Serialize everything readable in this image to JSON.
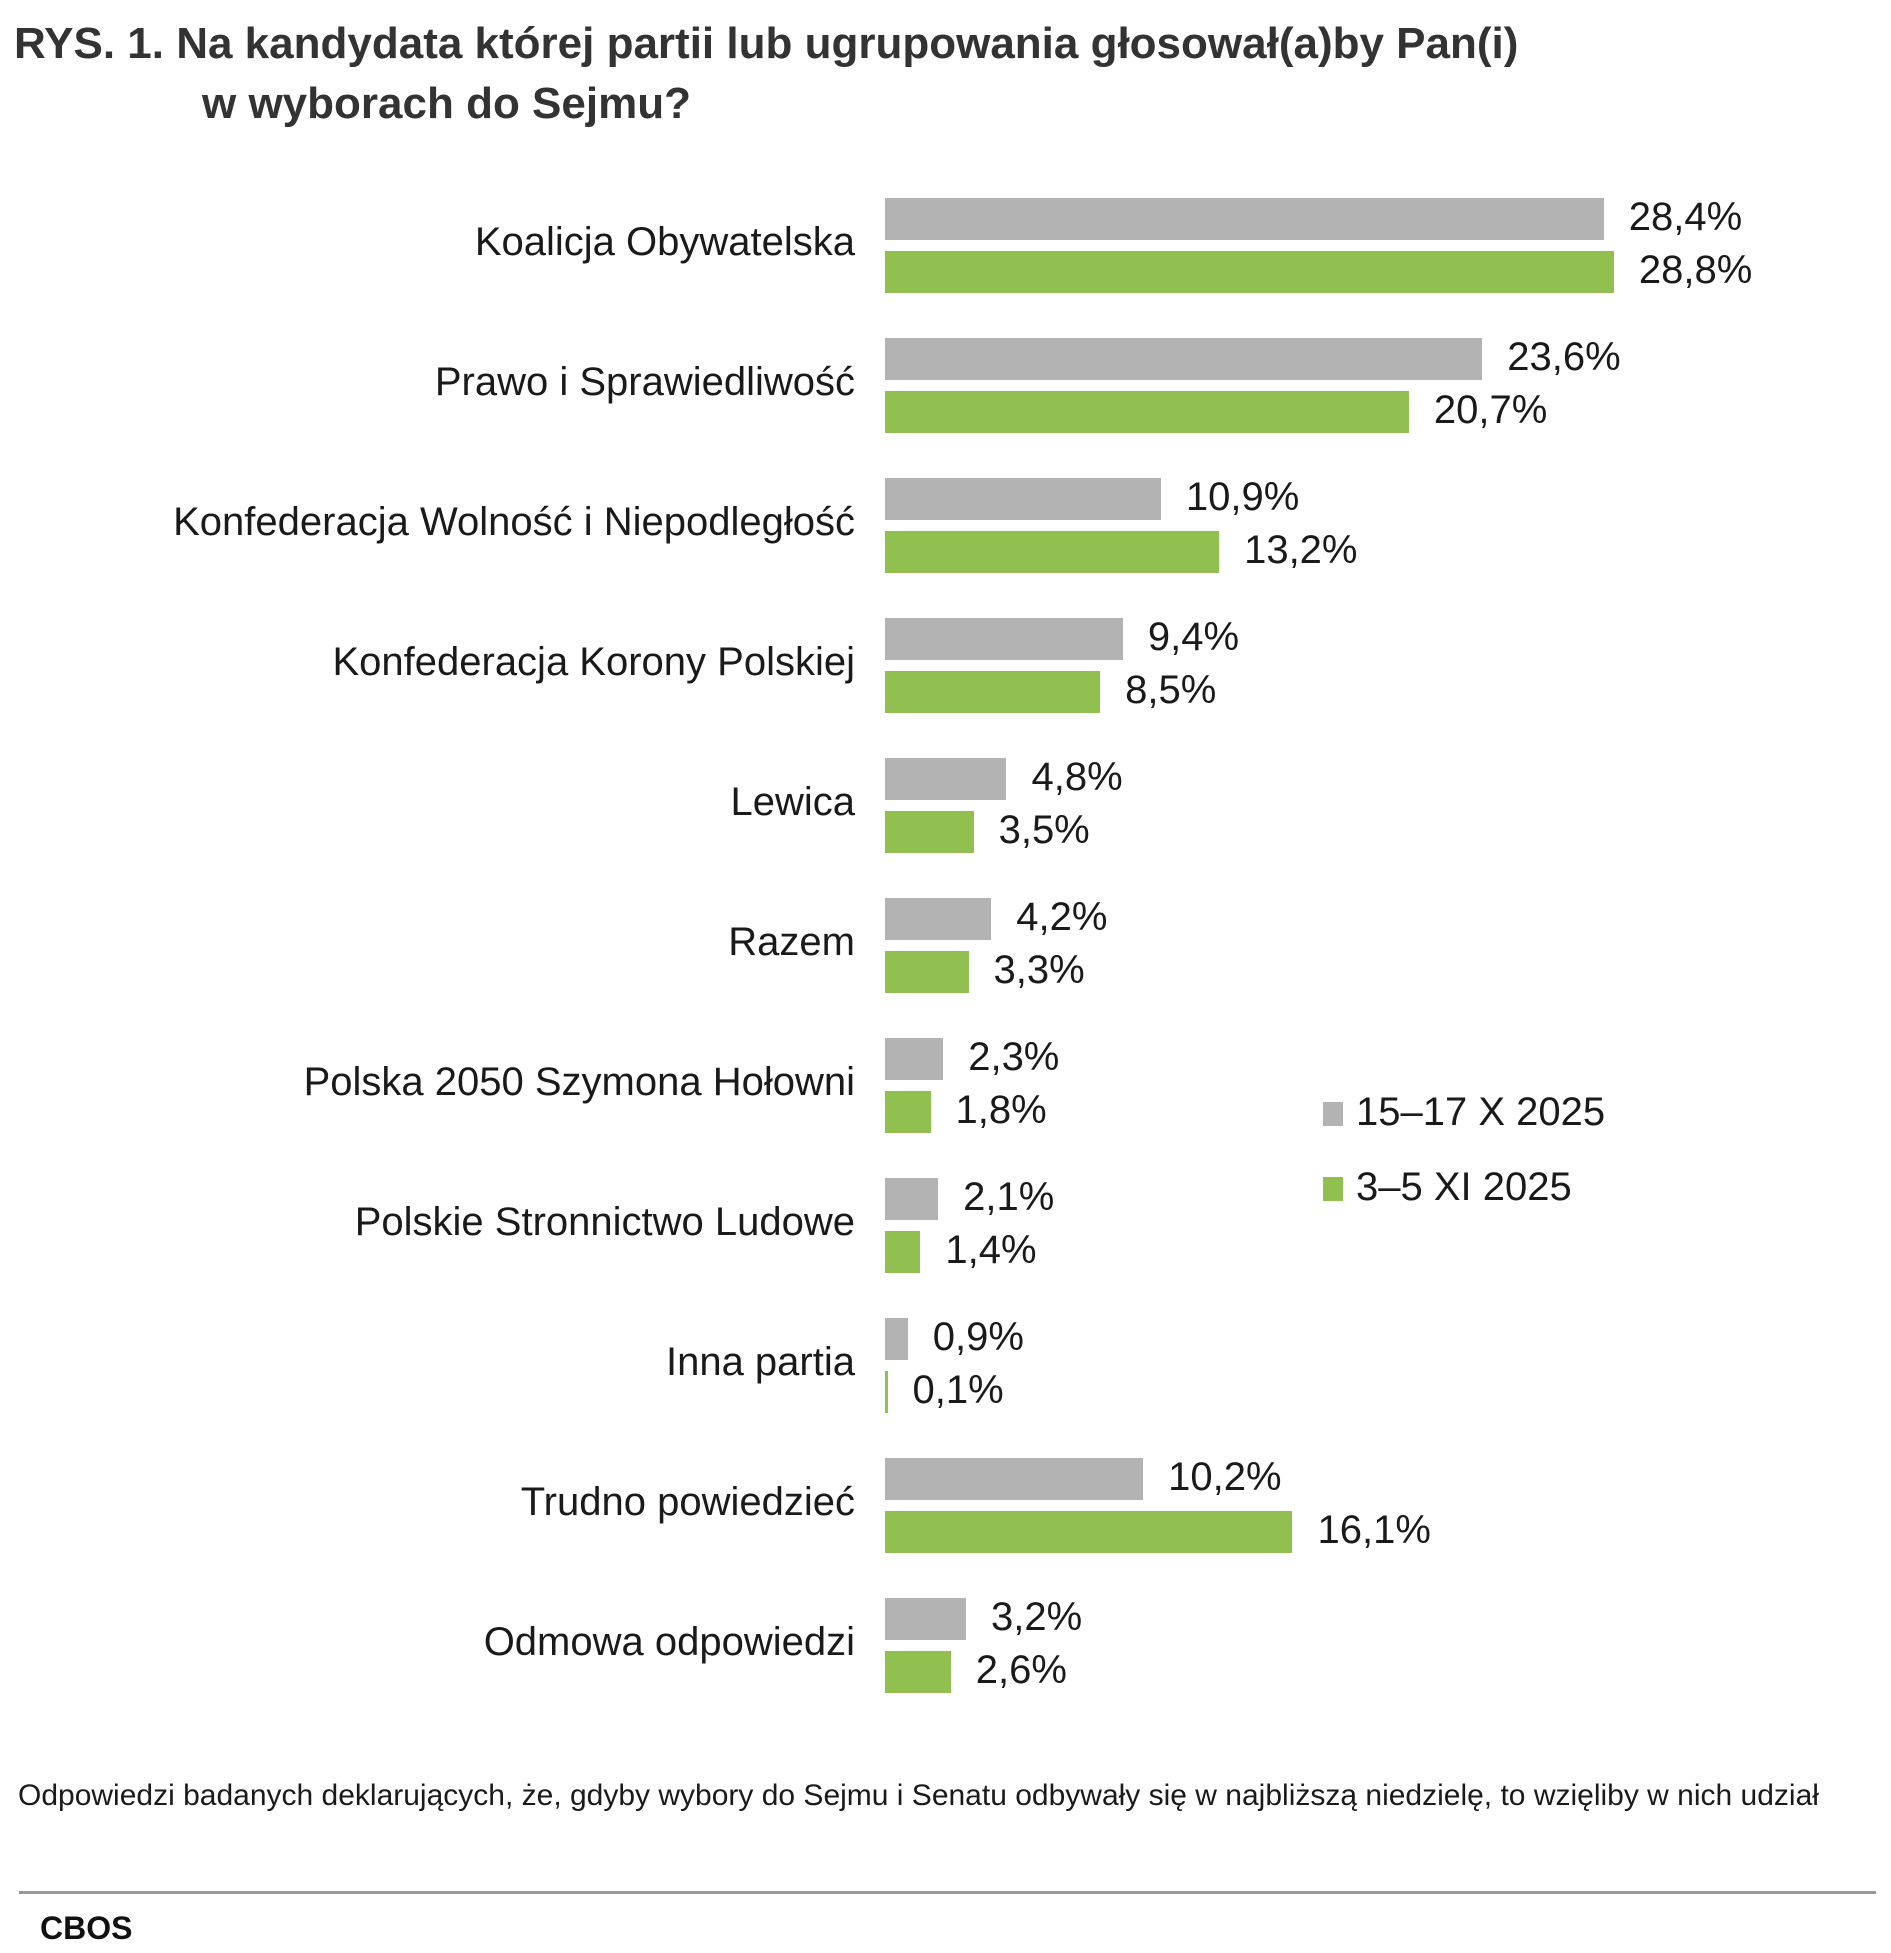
{
  "title": {
    "line1": "RYS. 1. Na kandydata której partii lub ugrupowania głosował(a)by Pan(i)",
    "line2": "w wyborach do Sejmu?"
  },
  "chart_data": {
    "type": "bar",
    "orientation": "horizontal",
    "categories": [
      "Koalicja Obywatelska",
      "Prawo i Sprawiedliwość",
      "Konfederacja Wolność i Niepodległość",
      "Konfederacja Korony Polskiej",
      "Lewica",
      "Razem",
      "Polska 2050 Szymona Hołowni",
      "Polskie Stronnictwo Ludowe",
      "Inna partia",
      "Trudno powiedzieć",
      "Odmowa odpowiedzi"
    ],
    "series": [
      {
        "name": "15–17 X 2025",
        "color": "#b3b3b3",
        "values": [
          28.4,
          23.6,
          10.9,
          9.4,
          4.8,
          4.2,
          2.3,
          2.1,
          0.9,
          10.2,
          3.2
        ],
        "labels": [
          "28,4%",
          "23,6%",
          "10,9%",
          "9,4%",
          "4,8%",
          "4,2%",
          "2,3%",
          "2,1%",
          "0,9%",
          "10,2%",
          "3,2%"
        ]
      },
      {
        "name": "3–5 XI 2025",
        "color": "#92c050",
        "values": [
          28.8,
          20.7,
          13.2,
          8.5,
          3.5,
          3.3,
          1.8,
          1.4,
          0.1,
          16.1,
          2.6
        ],
        "labels": [
          "28,8%",
          "20,7%",
          "13,2%",
          "8,5%",
          "3,5%",
          "3,3%",
          "1,8%",
          "1,4%",
          "0,1%",
          "16,1%",
          "2,6%"
        ]
      }
    ],
    "legend_position": "right",
    "grid": false
  },
  "footnote": "Odpowiedzi badanych deklarujących, że, gdyby wybory do Sejmu i Senatu odbywały się w najbliższą niedzielę, to wzięliby w nich udział",
  "source": "CBOS"
}
